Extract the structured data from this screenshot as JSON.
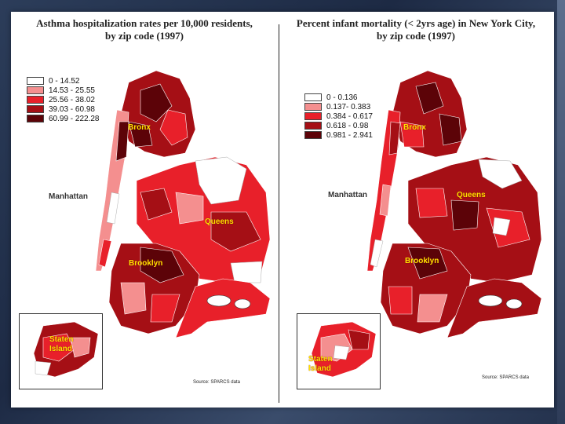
{
  "left": {
    "title_line1": "Asthma hospitalization rates per 10,000 residents,",
    "title_line2": "by zip code (1997)",
    "legend": [
      {
        "label": "0 - 14.52",
        "color": "#ffffff"
      },
      {
        "label": "14.53 - 25.55",
        "color": "#f48f8f"
      },
      {
        "label": "25.56 - 38.02",
        "color": "#e8202a"
      },
      {
        "label": "39.03 - 60.98",
        "color": "#a50f15"
      },
      {
        "label": "60.99 - 222.28",
        "color": "#5c0308"
      }
    ],
    "labels": {
      "bronx": "Bronx",
      "manhattan": "Manhattan",
      "queens": "Queens",
      "brooklyn": "Brooklyn",
      "staten": "Staten",
      "island": "Island"
    },
    "source": "Source: SPARCS data"
  },
  "right": {
    "title_line1": "Percent infant mortality (< 2yrs age) in New York City,",
    "title_line2": "by zip code (1997)",
    "legend": [
      {
        "label": "0 - 0.136",
        "color": "#ffffff"
      },
      {
        "label": "0.137- 0.383",
        "color": "#f48f8f"
      },
      {
        "label": "0.384 - 0.617",
        "color": "#e8202a"
      },
      {
        "label": "0.618 - 0.98",
        "color": "#a50f15"
      },
      {
        "label": "0.981 - 2.941",
        "color": "#5c0308"
      }
    ],
    "labels": {
      "bronx": "Bronx",
      "manhattan": "Manhattan",
      "queens": "Queens",
      "brooklyn": "Brooklyn",
      "staten": "Staten",
      "island": "Island"
    },
    "source": "Source: SPARCS data"
  }
}
